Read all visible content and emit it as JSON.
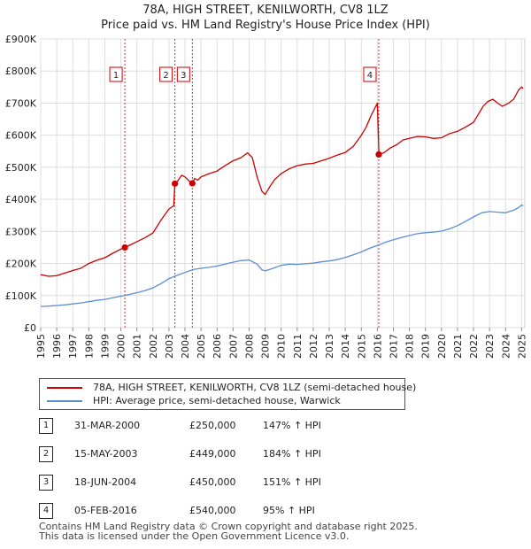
{
  "title": {
    "line1": "78A, HIGH STREET, KENILWORTH, CV8 1LZ",
    "line2": "Price paid vs. HM Land Registry's House Price Index (HPI)"
  },
  "chart_data": {
    "type": "line",
    "title": "78A, HIGH STREET, KENILWORTH, CV8 1LZ — Price paid vs. HM Land Registry's House Price Index (HPI)",
    "xlabel": "",
    "ylabel": "",
    "xlim": [
      1995.0,
      2025.2
    ],
    "ylim": [
      0,
      900000
    ],
    "grid": true,
    "y_ticks": [
      {
        "value": 0,
        "label": "£0"
      },
      {
        "value": 100000,
        "label": "£100K"
      },
      {
        "value": 200000,
        "label": "£200K"
      },
      {
        "value": 300000,
        "label": "£300K"
      },
      {
        "value": 400000,
        "label": "£400K"
      },
      {
        "value": 500000,
        "label": "£500K"
      },
      {
        "value": 600000,
        "label": "£600K"
      },
      {
        "value": 700000,
        "label": "£700K"
      },
      {
        "value": 800000,
        "label": "£800K"
      },
      {
        "value": 900000,
        "label": "£900K"
      }
    ],
    "x_ticks": [
      "1995",
      "1996",
      "1997",
      "1998",
      "1999",
      "2000",
      "2001",
      "2002",
      "2003",
      "2004",
      "2005",
      "2006",
      "2007",
      "2008",
      "2009",
      "2010",
      "2011",
      "2012",
      "2013",
      "2014",
      "2015",
      "2016",
      "2017",
      "2018",
      "2019",
      "2020",
      "2021",
      "2022",
      "2023",
      "2024",
      "2025"
    ],
    "series": [
      {
        "name": "78A, HIGH STREET, KENILWORTH, CV8 1LZ (semi-detached house)",
        "color": "#cc0000",
        "points": [
          [
            1995.0,
            165000
          ],
          [
            1995.5,
            160000
          ],
          [
            1996.0,
            162000
          ],
          [
            1996.5,
            170000
          ],
          [
            1997.0,
            178000
          ],
          [
            1997.5,
            185000
          ],
          [
            1998.0,
            200000
          ],
          [
            1998.5,
            210000
          ],
          [
            1999.0,
            218000
          ],
          [
            1999.5,
            232000
          ],
          [
            2000.0,
            245000
          ],
          [
            2000.25,
            250000
          ],
          [
            2000.6,
            258000
          ],
          [
            2001.0,
            268000
          ],
          [
            2001.5,
            280000
          ],
          [
            2002.0,
            295000
          ],
          [
            2002.5,
            335000
          ],
          [
            2003.0,
            370000
          ],
          [
            2003.3,
            380000
          ],
          [
            2003.37,
            449000
          ],
          [
            2003.5,
            455000
          ],
          [
            2003.8,
            475000
          ],
          [
            2004.0,
            470000
          ],
          [
            2004.3,
            455000
          ],
          [
            2004.46,
            450000
          ],
          [
            2004.6,
            465000
          ],
          [
            2004.8,
            460000
          ],
          [
            2005.0,
            470000
          ],
          [
            2005.5,
            480000
          ],
          [
            2006.0,
            488000
          ],
          [
            2006.5,
            505000
          ],
          [
            2007.0,
            520000
          ],
          [
            2007.5,
            530000
          ],
          [
            2007.9,
            545000
          ],
          [
            2008.2,
            530000
          ],
          [
            2008.5,
            470000
          ],
          [
            2008.8,
            425000
          ],
          [
            2009.0,
            415000
          ],
          [
            2009.3,
            440000
          ],
          [
            2009.6,
            462000
          ],
          [
            2010.0,
            480000
          ],
          [
            2010.5,
            495000
          ],
          [
            2011.0,
            505000
          ],
          [
            2011.5,
            510000
          ],
          [
            2012.0,
            512000
          ],
          [
            2012.5,
            520000
          ],
          [
            2013.0,
            528000
          ],
          [
            2013.5,
            538000
          ],
          [
            2014.0,
            546000
          ],
          [
            2014.5,
            565000
          ],
          [
            2015.0,
            600000
          ],
          [
            2015.3,
            625000
          ],
          [
            2015.6,
            660000
          ],
          [
            2015.9,
            690000
          ],
          [
            2016.0,
            700000
          ],
          [
            2016.1,
            540000
          ],
          [
            2016.4,
            545000
          ],
          [
            2016.8,
            560000
          ],
          [
            2017.2,
            570000
          ],
          [
            2017.6,
            585000
          ],
          [
            2018.0,
            590000
          ],
          [
            2018.5,
            596000
          ],
          [
            2019.0,
            595000
          ],
          [
            2019.5,
            590000
          ],
          [
            2020.0,
            592000
          ],
          [
            2020.5,
            605000
          ],
          [
            2021.0,
            612000
          ],
          [
            2021.5,
            625000
          ],
          [
            2022.0,
            640000
          ],
          [
            2022.3,
            665000
          ],
          [
            2022.6,
            690000
          ],
          [
            2022.9,
            705000
          ],
          [
            2023.2,
            712000
          ],
          [
            2023.5,
            700000
          ],
          [
            2023.8,
            690000
          ],
          [
            2024.2,
            700000
          ],
          [
            2024.5,
            712000
          ],
          [
            2024.8,
            740000
          ],
          [
            2025.0,
            750000
          ],
          [
            2025.1,
            745000
          ]
        ]
      },
      {
        "name": "HPI: Average price, semi-detached house, Warwick",
        "color": "#5b8fcf",
        "points": [
          [
            1995.0,
            66000
          ],
          [
            1995.5,
            67000
          ],
          [
            1996.0,
            69000
          ],
          [
            1996.5,
            71000
          ],
          [
            1997.0,
            74000
          ],
          [
            1997.5,
            77000
          ],
          [
            1998.0,
            81000
          ],
          [
            1998.5,
            85000
          ],
          [
            1999.0,
            88000
          ],
          [
            1999.5,
            93000
          ],
          [
            2000.0,
            98000
          ],
          [
            2000.5,
            103000
          ],
          [
            2001.0,
            109000
          ],
          [
            2001.5,
            115000
          ],
          [
            2002.0,
            124000
          ],
          [
            2002.5,
            137000
          ],
          [
            2003.0,
            153000
          ],
          [
            2003.5,
            163000
          ],
          [
            2004.0,
            172000
          ],
          [
            2004.5,
            181000
          ],
          [
            2005.0,
            185000
          ],
          [
            2005.5,
            188000
          ],
          [
            2006.0,
            192000
          ],
          [
            2006.5,
            198000
          ],
          [
            2007.0,
            204000
          ],
          [
            2007.5,
            209000
          ],
          [
            2008.0,
            211000
          ],
          [
            2008.5,
            198000
          ],
          [
            2008.8,
            180000
          ],
          [
            2009.0,
            177000
          ],
          [
            2009.5,
            185000
          ],
          [
            2010.0,
            194000
          ],
          [
            2010.5,
            198000
          ],
          [
            2011.0,
            197000
          ],
          [
            2011.5,
            199000
          ],
          [
            2012.0,
            201000
          ],
          [
            2012.5,
            205000
          ],
          [
            2013.0,
            208000
          ],
          [
            2013.5,
            212000
          ],
          [
            2014.0,
            219000
          ],
          [
            2014.5,
            227000
          ],
          [
            2015.0,
            236000
          ],
          [
            2015.5,
            247000
          ],
          [
            2016.0,
            256000
          ],
          [
            2016.5,
            266000
          ],
          [
            2017.0,
            274000
          ],
          [
            2017.5,
            281000
          ],
          [
            2018.0,
            287000
          ],
          [
            2018.5,
            293000
          ],
          [
            2019.0,
            296000
          ],
          [
            2019.5,
            298000
          ],
          [
            2020.0,
            301000
          ],
          [
            2020.5,
            308000
          ],
          [
            2021.0,
            318000
          ],
          [
            2021.5,
            331000
          ],
          [
            2022.0,
            345000
          ],
          [
            2022.5,
            358000
          ],
          [
            2023.0,
            362000
          ],
          [
            2023.5,
            360000
          ],
          [
            2024.0,
            358000
          ],
          [
            2024.5,
            366000
          ],
          [
            2024.8,
            374000
          ],
          [
            2025.0,
            382000
          ],
          [
            2025.1,
            380000
          ]
        ]
      }
    ],
    "sales": [
      {
        "n": "1",
        "x": 2000.25,
        "price": 250000
      },
      {
        "n": "2",
        "x": 2003.37,
        "price": 449000
      },
      {
        "n": "3",
        "x": 2004.46,
        "price": 450000
      },
      {
        "n": "4",
        "x": 2016.09,
        "price": 540000
      }
    ],
    "legend_position": "below"
  },
  "legend": [
    {
      "label": "78A, HIGH STREET, KENILWORTH, CV8 1LZ (semi-detached house)",
      "color": "#cc0000"
    },
    {
      "label": "HPI: Average price, semi-detached house, Warwick",
      "color": "#5b8fcf"
    }
  ],
  "transactions": [
    {
      "n": "1",
      "date": "31-MAR-2000",
      "price": "£250,000",
      "hpi": "147% ↑ HPI"
    },
    {
      "n": "2",
      "date": "15-MAY-2003",
      "price": "£449,000",
      "hpi": "184% ↑ HPI"
    },
    {
      "n": "3",
      "date": "18-JUN-2004",
      "price": "£450,000",
      "hpi": "151% ↑ HPI"
    },
    {
      "n": "4",
      "date": "05-FEB-2016",
      "price": "£540,000",
      "hpi": "95% ↑ HPI"
    }
  ],
  "footer": {
    "line1": "Contains HM Land Registry data © Crown copyright and database right 2025.",
    "line2": "This data is licensed under the Open Government Licence v3.0."
  }
}
